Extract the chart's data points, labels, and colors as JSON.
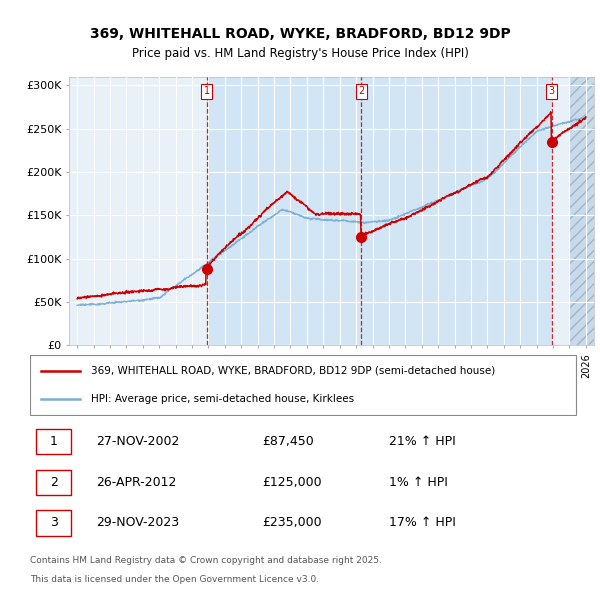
{
  "title_line1": "369, WHITEHALL ROAD, WYKE, BRADFORD, BD12 9DP",
  "title_line2": "Price paid vs. HM Land Registry's House Price Index (HPI)",
  "ylim": [
    0,
    310000
  ],
  "yticks": [
    0,
    50000,
    100000,
    150000,
    200000,
    250000,
    300000
  ],
  "ytick_labels": [
    "£0",
    "£50K",
    "£100K",
    "£150K",
    "£200K",
    "£250K",
    "£300K"
  ],
  "plot_bg": "#e8f0f8",
  "shade_color": "#d0e4f4",
  "red_color": "#cc0000",
  "blue_color": "#7aaed6",
  "sale1_date": 2002.9,
  "sale1_price": 87450,
  "sale2_date": 2012.32,
  "sale2_price": 125000,
  "sale3_date": 2023.91,
  "sale3_price": 235000,
  "hatch_start": 2025.0,
  "legend_line1": "369, WHITEHALL ROAD, WYKE, BRADFORD, BD12 9DP (semi-detached house)",
  "legend_line2": "HPI: Average price, semi-detached house, Kirklees",
  "table_rows": [
    {
      "num": "1",
      "date": "27-NOV-2002",
      "price": "£87,450",
      "change": "21% ↑ HPI"
    },
    {
      "num": "2",
      "date": "26-APR-2012",
      "price": "£125,000",
      "change": "1% ↑ HPI"
    },
    {
      "num": "3",
      "date": "29-NOV-2023",
      "price": "£235,000",
      "change": "17% ↑ HPI"
    }
  ],
  "footer_line1": "Contains HM Land Registry data © Crown copyright and database right 2025.",
  "footer_line2": "This data is licensed under the Open Government Licence v3.0.",
  "xmin": 1994.5,
  "xmax": 2026.5
}
